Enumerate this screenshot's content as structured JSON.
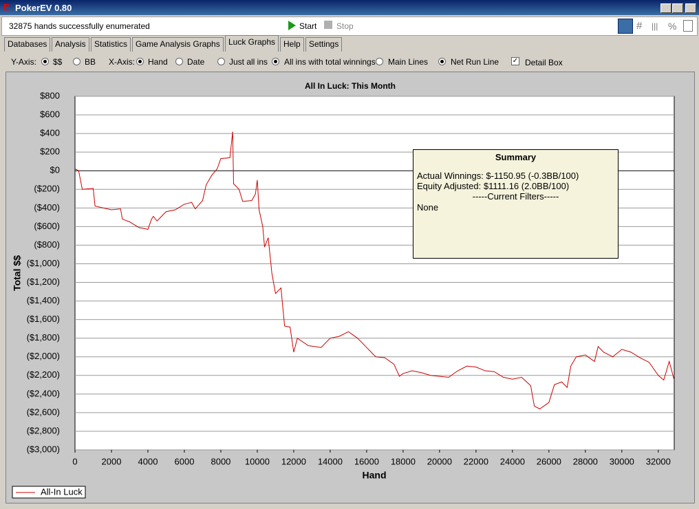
{
  "window": {
    "title": "PokerEV 0.80"
  },
  "status": "32875 hands successfully enumerated",
  "toolbar": [
    "Start",
    "Stop"
  ],
  "tabs": [
    "Databases",
    "Analysis",
    "Statistics",
    "Game Analysis Graphs",
    "Luck Graphs",
    "Help",
    "Settings"
  ],
  "options": {
    "y_axis_label": "Y-Axis:",
    "y_axis": [
      "$$",
      "BB"
    ],
    "x_axis_label": "X-Axis:",
    "x_axis": [
      "Hand",
      "Date"
    ],
    "filters": [
      "Just all ins",
      "All ins with total winnings",
      "Main Lines",
      "Net Run Line"
    ],
    "detail_box": "Detail Box"
  },
  "summary": {
    "title": "Summary",
    "lines": [
      "Actual Winnings: $-1150.95 (-0.3BB/100)",
      "Equity Adjusted: $1111.16 (2.0BB/100)",
      "-----Current Filters-----",
      "None"
    ]
  },
  "chart_data": {
    "type": "line",
    "title": "All In Luck: This Month",
    "x_label": "Hand",
    "y_label": "Total $$",
    "x": [
      0,
      200,
      400,
      1000,
      1100,
      2000,
      2500,
      2600,
      3000,
      3500,
      4000,
      4200,
      4300,
      4500,
      5000,
      5500,
      6000,
      6400,
      6600,
      7000,
      7200,
      7500,
      7800,
      8000,
      8500,
      8650,
      8700,
      9000,
      9200,
      9700,
      9900,
      10000,
      10100,
      10300,
      10400,
      10600,
      10800,
      11000,
      11300,
      11500,
      11800,
      12000,
      12200,
      12800,
      13500,
      14000,
      14500,
      15000,
      15500,
      16000,
      16500,
      17000,
      17500,
      17800,
      18000,
      18500,
      19000,
      19500,
      20000,
      20500,
      21000,
      21500,
      22000,
      22500,
      23000,
      23500,
      24000,
      24500,
      25000,
      25200,
      25500,
      26000,
      26300,
      26700,
      27000,
      27200,
      27500,
      28000,
      28500,
      28700,
      29000,
      29500,
      30000,
      30500,
      31000,
      31500,
      32000,
      32300,
      32600,
      32875
    ],
    "series": [
      {
        "name": "All-In Luck",
        "color": "#cc0000",
        "values": [
          20,
          0,
          -200,
          -190,
          -380,
          -420,
          -410,
          -520,
          -550,
          -610,
          -630,
          -520,
          -490,
          -540,
          -440,
          -420,
          -360,
          -340,
          -410,
          -320,
          -150,
          -50,
          20,
          130,
          140,
          420,
          -140,
          -200,
          -330,
          -320,
          -250,
          -100,
          -420,
          -600,
          -820,
          -720,
          -1100,
          -1320,
          -1260,
          -1670,
          -1680,
          -1950,
          -1800,
          -1880,
          -1900,
          -1800,
          -1780,
          -1730,
          -1800,
          -1900,
          -2000,
          -2010,
          -2080,
          -2210,
          -2180,
          -2150,
          -2170,
          -2200,
          -2210,
          -2220,
          -2150,
          -2100,
          -2110,
          -2150,
          -2160,
          -2220,
          -2240,
          -2220,
          -2310,
          -2530,
          -2560,
          -2490,
          -2300,
          -2270,
          -2330,
          -2100,
          -2000,
          -1980,
          -2050,
          -1890,
          -1950,
          -2000,
          -1920,
          -1950,
          -2010,
          -2060,
          -2200,
          -2250,
          -2050,
          -2250
        ]
      }
    ],
    "xlim": [
      0,
      32875
    ],
    "xticks": [
      0,
      2000,
      4000,
      6000,
      8000,
      10000,
      12000,
      14000,
      16000,
      18000,
      20000,
      22000,
      24000,
      26000,
      28000,
      30000,
      32000
    ],
    "ylim": [
      -3000,
      800
    ],
    "yticks": [
      {
        "value": -3000,
        "label": "($3,000)"
      },
      {
        "value": -2800,
        "label": "($2,800)"
      },
      {
        "value": -2600,
        "label": "($2,600)"
      },
      {
        "value": -2400,
        "label": "($2,400)"
      },
      {
        "value": -2200,
        "label": "($2,200)"
      },
      {
        "value": -2000,
        "label": "($2,000)"
      },
      {
        "value": -1800,
        "label": "($1,800)"
      },
      {
        "value": -1600,
        "label": "($1,600)"
      },
      {
        "value": -1400,
        "label": "($1,400)"
      },
      {
        "value": -1200,
        "label": "($1,200)"
      },
      {
        "value": -1000,
        "label": "($1,000)"
      },
      {
        "value": -800,
        "label": "($800)"
      },
      {
        "value": -600,
        "label": "($600)"
      },
      {
        "value": -400,
        "label": "($400)"
      },
      {
        "value": -200,
        "label": "($200)"
      },
      {
        "value": 0,
        "label": "$0"
      },
      {
        "value": 200,
        "label": "$200"
      },
      {
        "value": 400,
        "label": "$400"
      },
      {
        "value": 600,
        "label": "$600"
      },
      {
        "value": 800,
        "label": "$800"
      }
    ],
    "grid": true
  }
}
